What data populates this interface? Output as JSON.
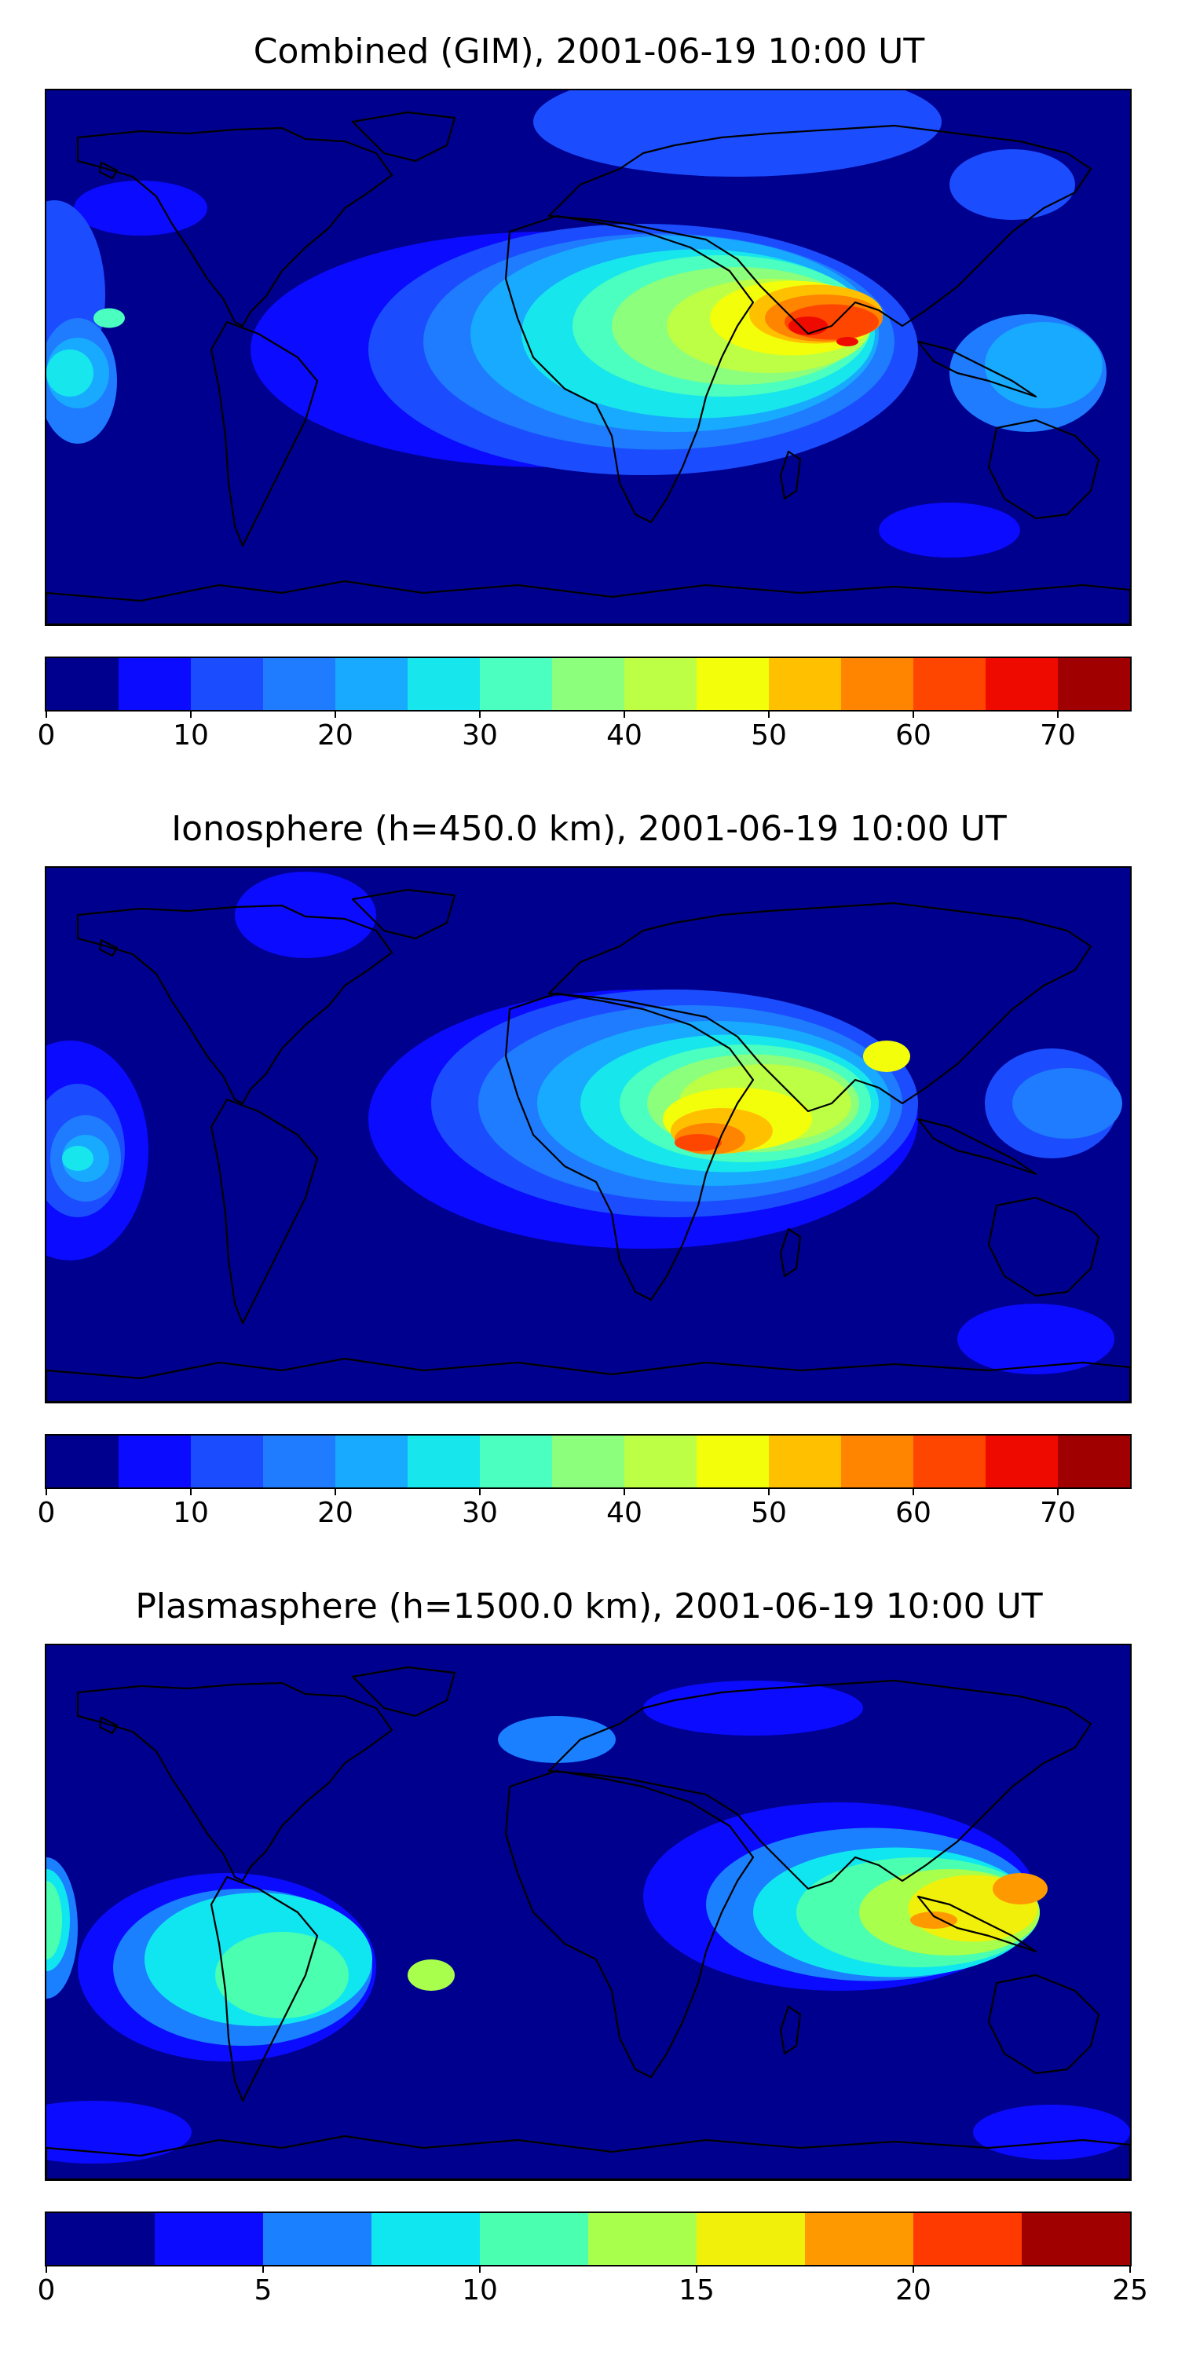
{
  "panels": [
    {
      "id": "combined",
      "title": "Combined (GIM), 2001-06-19 10:00 UT",
      "colorbar": {
        "vmin": 0,
        "vmax": 75,
        "step": 5,
        "ticks": [
          0,
          10,
          20,
          30,
          40,
          50,
          60,
          70
        ]
      }
    },
    {
      "id": "ionosphere",
      "title": "Ionosphere  (h=450.0 km), 2001-06-19 10:00 UT",
      "colorbar": {
        "vmin": 0,
        "vmax": 75,
        "step": 5,
        "ticks": [
          0,
          10,
          20,
          30,
          40,
          50,
          60,
          70
        ]
      }
    },
    {
      "id": "plasmasphere",
      "title": "Plasmasphere (h=1500.0 km), 2001-06-19 10:00 UT",
      "colorbar": {
        "vmin": 0,
        "vmax": 25,
        "step": 2.5,
        "ticks": [
          0,
          5,
          10,
          15,
          20,
          25
        ]
      }
    }
  ],
  "colormaps": {
    "15": [
      "#00008f",
      "#0b0bff",
      "#1b4dff",
      "#1f7cff",
      "#17aaff",
      "#17e6ec",
      "#4affbf",
      "#8cff7c",
      "#bcff44",
      "#f3ff0a",
      "#ffc000",
      "#ff8400",
      "#ff4600",
      "#ef0a00",
      "#a00000"
    ],
    "10": [
      "#00008f",
      "#0b0bff",
      "#1a80ff",
      "#10e6f0",
      "#4affb0",
      "#a8ff4c",
      "#f0f00a",
      "#ff9900",
      "#ff3a00",
      "#a00000"
    ]
  }
}
